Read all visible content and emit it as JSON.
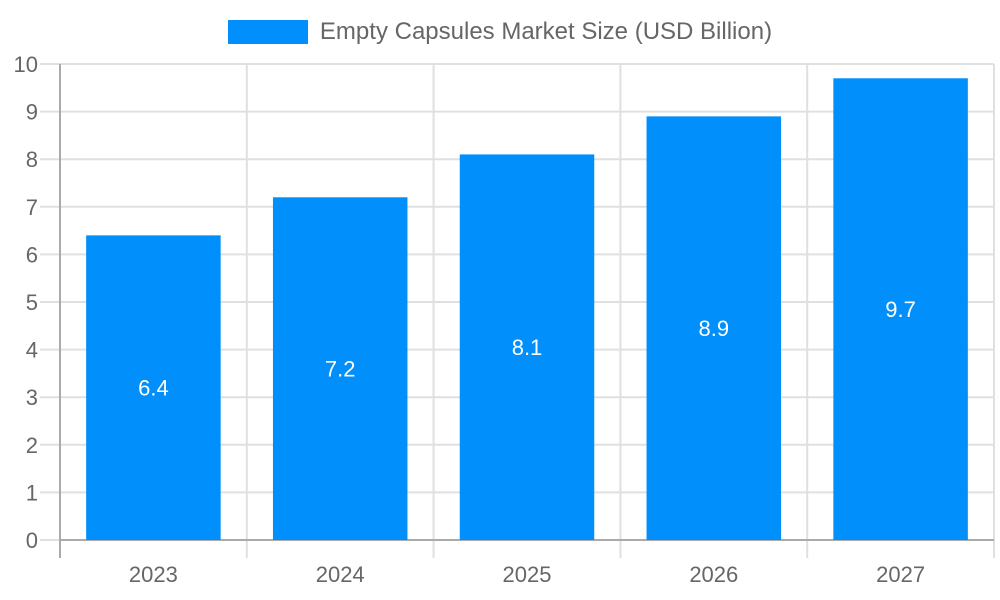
{
  "chart_data": {
    "type": "bar",
    "categories": [
      "2023",
      "2024",
      "2025",
      "2026",
      "2027"
    ],
    "series": [
      {
        "name": "Empty Capsules Market  Size (USD Billion)",
        "values": [
          6.4,
          7.2,
          8.1,
          8.9,
          9.7
        ],
        "color": "#008FFB"
      }
    ],
    "data_labels": [
      "6.4",
      "7.2",
      "8.1",
      "8.9",
      "9.7"
    ],
    "yticks": [
      "0",
      "1",
      "2",
      "3",
      "4",
      "5",
      "6",
      "7",
      "8",
      "9",
      "10"
    ],
    "ylim": [
      0,
      10
    ],
    "grid": true,
    "legend_position": "top-center"
  }
}
